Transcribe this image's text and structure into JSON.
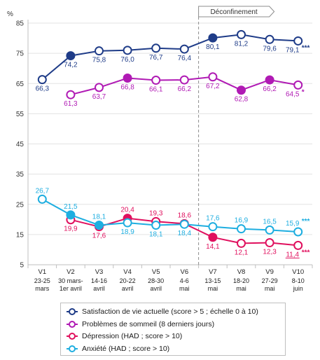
{
  "chart_data": {
    "type": "line",
    "ylabel": "%",
    "ylim": [
      5,
      85
    ],
    "yticks": [
      5,
      15,
      25,
      35,
      45,
      55,
      65,
      75,
      85
    ],
    "grid": true,
    "categories": [
      {
        "wave": "V1",
        "dates": [
          "23-25",
          "mars"
        ]
      },
      {
        "wave": "V2",
        "dates": [
          "30 mars-",
          "1er avril"
        ]
      },
      {
        "wave": "V3",
        "dates": [
          "14-16",
          "avril"
        ]
      },
      {
        "wave": "V4",
        "dates": [
          "20-22",
          "avril"
        ]
      },
      {
        "wave": "V5",
        "dates": [
          "28-30",
          "avril"
        ]
      },
      {
        "wave": "V6",
        "dates": [
          "4-6",
          "mai"
        ]
      },
      {
        "wave": "V7",
        "dates": [
          "13-15",
          "mai"
        ]
      },
      {
        "wave": "V8",
        "dates": [
          "18-20",
          "mai"
        ]
      },
      {
        "wave": "V9",
        "dates": [
          "27-29",
          "mai"
        ]
      },
      {
        "wave": "V10",
        "dates": [
          "8-10",
          "juin"
        ]
      }
    ],
    "annotation": {
      "label": "Déconfinement",
      "at_category": "V7"
    },
    "series": [
      {
        "name": "Satisfaction de vie actuelle (score > 5 ; échelle 0 à 10)",
        "color": "#1f3c88",
        "values": [
          66.3,
          74.2,
          75.8,
          76.0,
          76.7,
          76.4,
          80.1,
          81.2,
          79.6,
          79.1
        ],
        "labels": [
          "66,3",
          "74,2",
          "75,8",
          "76,0",
          "76,7",
          "76,4",
          "80,1",
          "81,2",
          "79,6",
          "79,1"
        ],
        "filled": [
          false,
          true,
          false,
          false,
          false,
          false,
          true,
          false,
          false,
          false
        ],
        "label_pos": [
          "below",
          "below",
          "below",
          "below",
          "below",
          "below",
          "below",
          "below",
          "below",
          "below"
        ],
        "end_marker": "***"
      },
      {
        "name": "Problèmes de sommeil (8 derniers jours)",
        "color": "#b01ab4",
        "values": [
          null,
          61.3,
          63.7,
          66.8,
          66.1,
          66.2,
          67.2,
          62.8,
          66.2,
          64.5
        ],
        "labels": [
          null,
          "61,3",
          "63,7",
          "66,8",
          "66,1",
          "66,2",
          "67,2",
          "62,8",
          "66,2",
          "64,5"
        ],
        "filled": [
          false,
          false,
          false,
          true,
          false,
          false,
          false,
          true,
          true,
          false
        ],
        "label_pos": [
          null,
          "below",
          "below",
          "below",
          "below",
          "below",
          "below",
          "below",
          "below",
          "below"
        ],
        "end_marker": "*"
      },
      {
        "name": "Dépression (HAD ; score > 10)",
        "color": "#e0105e",
        "values": [
          null,
          19.9,
          17.6,
          20.4,
          19.3,
          18.6,
          14.1,
          12.1,
          12.3,
          11.4
        ],
        "labels": [
          null,
          "19,9",
          "17,6",
          "20,4",
          "19,3",
          "18,6",
          "14,1",
          "12,1",
          "12,3",
          "11,4"
        ],
        "filled": [
          false,
          false,
          false,
          true,
          false,
          false,
          true,
          false,
          false,
          false
        ],
        "label_pos": [
          null,
          "below",
          "below",
          "above",
          "above",
          "above",
          "below",
          "below",
          "below",
          "below"
        ],
        "end_marker": "***"
      },
      {
        "name": "Anxiété (HAD ; score > 10)",
        "color": "#1eaee0",
        "values": [
          26.7,
          21.5,
          18.1,
          18.9,
          18.1,
          18.4,
          17.6,
          16.9,
          16.5,
          15.9
        ],
        "labels": [
          "26,7",
          "21,5",
          "18,1",
          "18,9",
          "18,1",
          "18,4",
          "17,6",
          "16,9",
          "16,5",
          "15,9"
        ],
        "filled": [
          false,
          true,
          true,
          false,
          false,
          false,
          false,
          false,
          false,
          false
        ],
        "label_pos": [
          "above",
          "above",
          "above",
          "below",
          "below",
          "below",
          "above",
          "above",
          "above",
          "above"
        ],
        "end_marker": "***"
      }
    ]
  }
}
